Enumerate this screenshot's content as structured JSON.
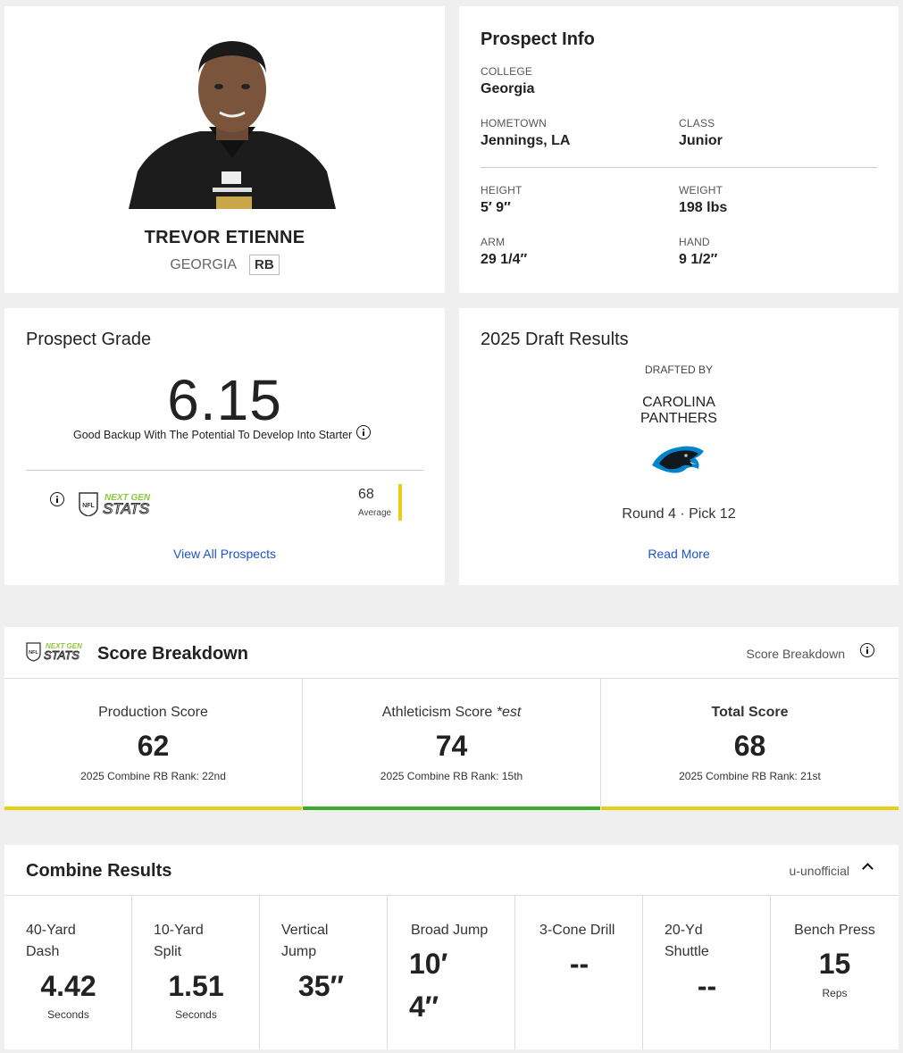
{
  "player": {
    "name": "TREVOR ETIENNE",
    "school": "GEORGIA",
    "position": "RB"
  },
  "prospect_info": {
    "title": "Prospect Info",
    "college_label": "COLLEGE",
    "college": "Georgia",
    "hometown_label": "HOMETOWN",
    "hometown": "Jennings, LA",
    "class_label": "CLASS",
    "class": "Junior",
    "height_label": "HEIGHT",
    "height": "5′ 9″",
    "weight_label": "WEIGHT",
    "weight": "198 lbs",
    "arm_label": "ARM",
    "arm": "29 1/4″",
    "hand_label": "HAND",
    "hand": "9 1/2″"
  },
  "grade": {
    "title": "Prospect Grade",
    "value": "6.15",
    "description": "Good Backup With The Potential To Develop Into Starter",
    "ngs_value": "68",
    "ngs_label": "Average",
    "ngs_level": 0.68,
    "view_all": "View All Prospects"
  },
  "draft": {
    "title": "2025 Draft Results",
    "drafted_by": "DRAFTED BY",
    "team_line1": "CAROLINA",
    "team_line2": "PANTHERS",
    "round_pick": "Round 4 · Pick 12",
    "read_more": "Read More"
  },
  "score_breakdown": {
    "title": "Score Breakdown",
    "right_label": "Score Breakdown",
    "ngs_logo_line1": "NEXT GEN",
    "ngs_logo_line2": "STATS",
    "cells": [
      {
        "title": "Production Score",
        "title_suffix": "",
        "score": "62",
        "rank": "2025 Combine RB Rank: 22nd",
        "bar_color": "#e7cf12"
      },
      {
        "title": "Athleticism Score",
        "title_suffix": "*est",
        "score": "74",
        "rank": "2025 Combine RB Rank: 15th",
        "bar_color": "#3aab2b"
      },
      {
        "title": "Total Score",
        "title_suffix": "",
        "score": "68",
        "rank": "2025 Combine RB Rank: 21st",
        "bar_color": "#e7cf12"
      }
    ]
  },
  "combine": {
    "title": "Combine Results",
    "right_label": "u-unofficial",
    "drills": [
      {
        "label1": "40-Yard",
        "label2": "Dash",
        "value": "4.42",
        "unit": "Seconds"
      },
      {
        "label1": "10-Yard",
        "label2": "Split",
        "value": "1.51",
        "unit": "Seconds"
      },
      {
        "label1": "Vertical",
        "label2": "Jump",
        "value": "35″",
        "unit": ""
      },
      {
        "label1": "Broad Jump",
        "label2": "",
        "value1": "10′",
        "value2": "4″",
        "unit": ""
      },
      {
        "label1": "3-Cone Drill",
        "label2": "",
        "value": "--",
        "unit": ""
      },
      {
        "label1": "20-Yd",
        "label2": "Shuttle",
        "value": "--",
        "unit": ""
      },
      {
        "label1": "Bench Press",
        "label2": "",
        "value": "15",
        "unit": "Reps"
      }
    ]
  }
}
